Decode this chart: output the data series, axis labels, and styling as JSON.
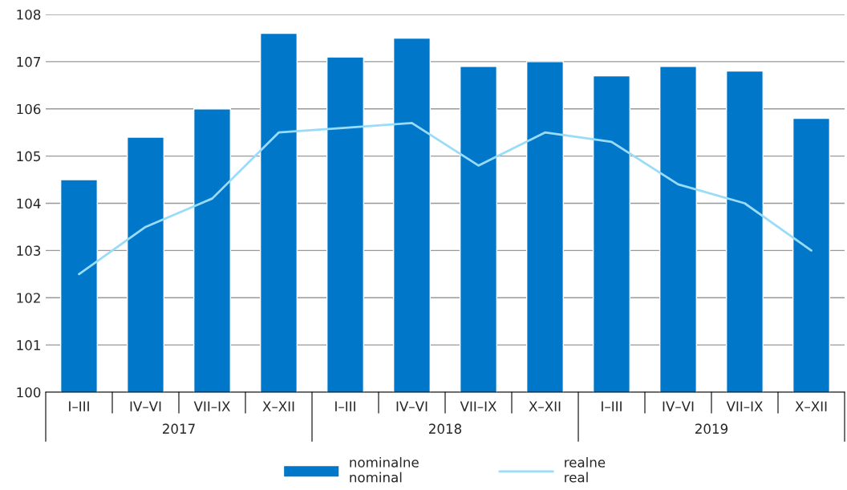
{
  "chart_data": {
    "type": "bar",
    "categories": [
      "I–III",
      "IV–VI",
      "VII–IX",
      "X–XII",
      "I–III",
      "IV–VI",
      "VII–IX",
      "X–XII",
      "I–III",
      "IV–VI",
      "VII–IX",
      "X–XII"
    ],
    "series": [
      {
        "name": "nominalne\nnominal",
        "color": "#0077c8",
        "values": [
          104.5,
          105.4,
          106.0,
          107.6,
          107.1,
          107.5,
          106.9,
          107.0,
          106.7,
          106.9,
          106.8,
          105.8
        ]
      },
      {
        "name": "realne\nreal",
        "type": "line",
        "color": "#99dcf8",
        "values": [
          102.5,
          103.5,
          104.1,
          105.5,
          105.6,
          105.7,
          104.8,
          105.5,
          105.3,
          104.4,
          104.0,
          103.0
        ]
      }
    ],
    "annotations": [
      "2017",
      "2018",
      "2019"
    ],
    "ylim": [
      100,
      108
    ],
    "yticks": [
      100,
      101,
      102,
      103,
      104,
      105,
      106,
      107,
      108
    ],
    "grid": "y",
    "legend": "bottom"
  }
}
